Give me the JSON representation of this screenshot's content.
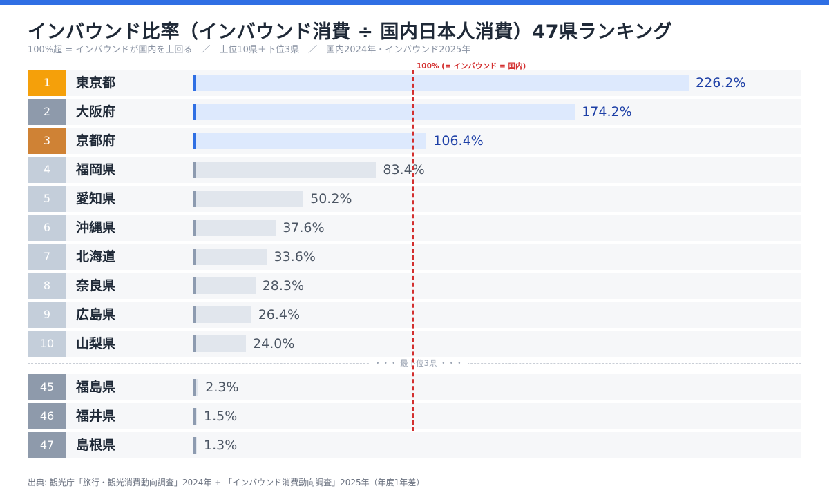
{
  "title": "インバウンド比率（インバウンド消費 ÷ 国内日本人消費）47県ランキング",
  "subtitle": "100%超 = インバウンドが国内を上回る　／　上位10県＋下位3県　／　国内2024年・インバウンド2025年",
  "reference_label": "100% (= インバウンド = 国内)",
  "separator_label": "・・・ 最下位3県 ・・・",
  "source": "出典: 観光庁「旅行・観光消費動向調査」2024年 + 「インバウンド消費動向調査」2025年（年度1年差）",
  "colors": {
    "accent": "#2f6fe4",
    "reference": "#d32f2f",
    "rank_gold": "#f5a00a",
    "rank_silver": "#8e9aab",
    "rank_bronze": "#cf8235",
    "rank_top10": "#c4ceda",
    "rank_bottom": "#8e9aab",
    "bar_over_100": "#dde9fd",
    "bar_under_100": "#e1e6ed"
  },
  "chart_data": {
    "type": "bar",
    "orientation": "horizontal",
    "unit": "%",
    "reference_value": 100,
    "rows": [
      {
        "rank": "1",
        "name": "東京都",
        "value": 226.2,
        "label": "226.2%"
      },
      {
        "rank": "2",
        "name": "大阪府",
        "value": 174.2,
        "label": "174.2%"
      },
      {
        "rank": "3",
        "name": "京都府",
        "value": 106.4,
        "label": "106.4%"
      },
      {
        "rank": "4",
        "name": "福岡県",
        "value": 83.4,
        "label": "83.4%"
      },
      {
        "rank": "5",
        "name": "愛知県",
        "value": 50.2,
        "label": "50.2%"
      },
      {
        "rank": "6",
        "name": "沖縄県",
        "value": 37.6,
        "label": "37.6%"
      },
      {
        "rank": "7",
        "name": "北海道",
        "value": 33.6,
        "label": "33.6%"
      },
      {
        "rank": "8",
        "name": "奈良県",
        "value": 28.3,
        "label": "28.3%"
      },
      {
        "rank": "9",
        "name": "広島県",
        "value": 26.4,
        "label": "26.4%"
      },
      {
        "rank": "10",
        "name": "山梨県",
        "value": 24.0,
        "label": "24.0%"
      },
      {
        "rank": "45",
        "name": "福島県",
        "value": 2.3,
        "label": "2.3%"
      },
      {
        "rank": "46",
        "name": "福井県",
        "value": 1.5,
        "label": "1.5%"
      },
      {
        "rank": "47",
        "name": "島根県",
        "value": 1.3,
        "label": "1.3%"
      }
    ]
  }
}
